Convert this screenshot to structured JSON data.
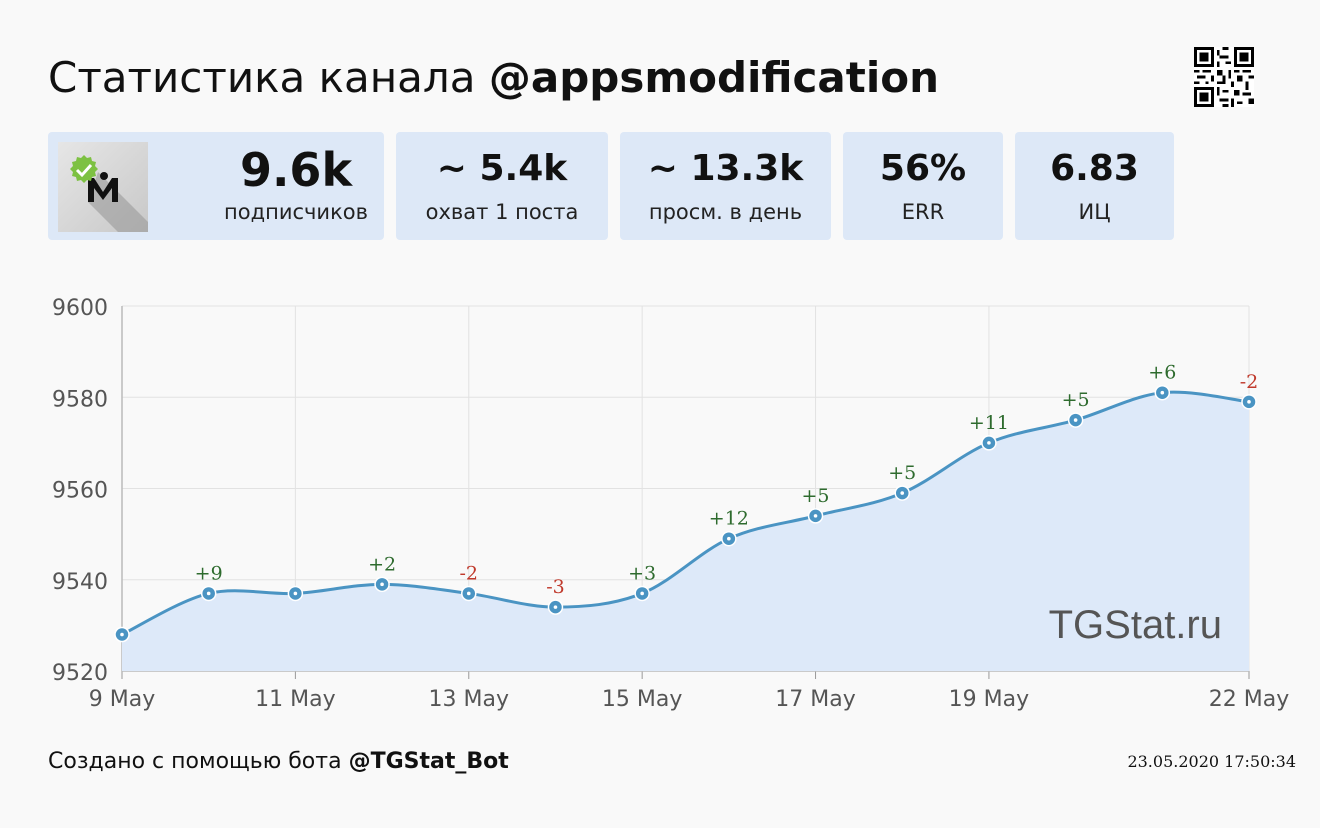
{
  "header": {
    "title_prefix": "Статистика канала",
    "channel": "@appsmodification"
  },
  "stats": [
    {
      "value": "9.6k",
      "label": "подписчиков"
    },
    {
      "value": "~ 5.4k",
      "label": "охват 1 поста"
    },
    {
      "value": "~ 13.3k",
      "label": "просм. в день"
    },
    {
      "value": "56%",
      "label": "ERR"
    },
    {
      "value": "6.83",
      "label": "ИЦ"
    }
  ],
  "chart_data": {
    "type": "area",
    "x": [
      "9 May",
      "10 May",
      "11 May",
      "12 May",
      "13 May",
      "14 May",
      "15 May",
      "16 May",
      "17 May",
      "18 May",
      "19 May",
      "20 May",
      "21 May",
      "22 May"
    ],
    "values": [
      9528,
      9537,
      9537,
      9539,
      9537,
      9534,
      9537,
      9549,
      9554,
      9559,
      9570,
      9575,
      9581,
      9579
    ],
    "point_labels": [
      "",
      "+9",
      "",
      "+2",
      "-2",
      "-3",
      "+3",
      "+12",
      "+5",
      "+5",
      "+11",
      "+5",
      "+6",
      "-2"
    ],
    "x_tick_labels": [
      "9 May",
      "11 May",
      "13 May",
      "15 May",
      "17 May",
      "19 May",
      "22 May"
    ],
    "y_ticks": [
      9520,
      9540,
      9560,
      9580,
      9600
    ],
    "ylim": [
      9520,
      9600
    ],
    "grid": true,
    "watermark": "TGStat.ru",
    "colors": {
      "line": "#4a94c3",
      "fill": "#dde9f9",
      "positive": "#2e6b2e",
      "negative": "#c0392b",
      "grid": "#e2e2e2"
    }
  },
  "footer": {
    "prefix": "Создано с помощью бота",
    "bot": "@TGStat_Bot",
    "timestamp": "23.05.2020 17:50:34"
  }
}
